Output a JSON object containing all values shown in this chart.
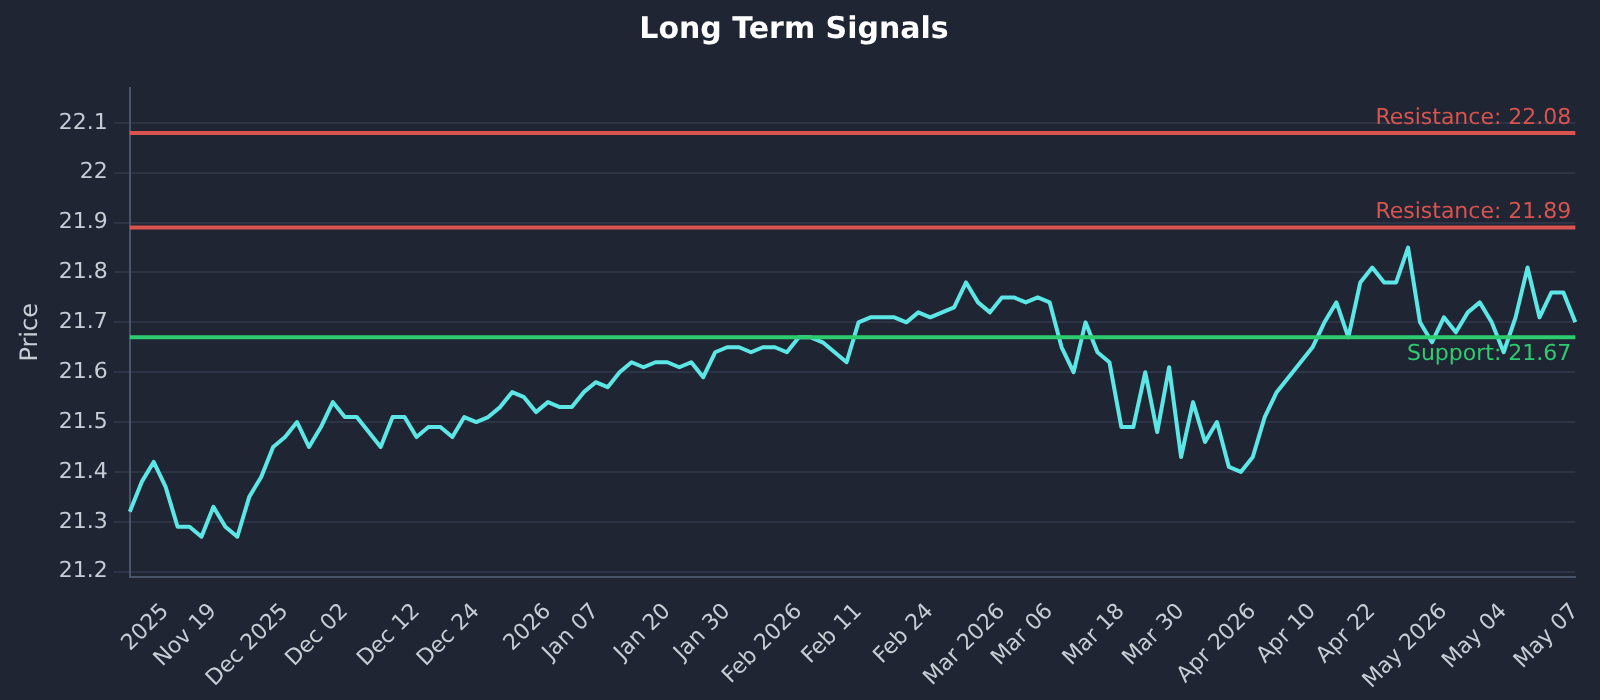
{
  "chart_data": {
    "type": "line",
    "title": "Long Term Signals",
    "ylabel": "Price",
    "categories": [
      null,
      null,
      null,
      "2025",
      null,
      null,
      null,
      "Nov 19",
      null,
      null,
      null,
      null,
      null,
      "Dec 2025",
      null,
      null,
      null,
      null,
      "Dec 02",
      null,
      null,
      null,
      null,
      null,
      "Dec 12",
      null,
      null,
      null,
      null,
      "Dec 24",
      null,
      null,
      null,
      null,
      null,
      "2026",
      null,
      null,
      null,
      "Jan 07",
      null,
      null,
      null,
      null,
      null,
      "Jan 20",
      null,
      null,
      null,
      null,
      "Jan 30",
      null,
      null,
      null,
      null,
      null,
      "Feb 2026",
      null,
      null,
      null,
      null,
      "Feb 11",
      null,
      null,
      null,
      null,
      null,
      "Feb 24",
      null,
      null,
      null,
      null,
      null,
      "Mar 2026",
      null,
      null,
      null,
      "Mar 06",
      null,
      null,
      null,
      null,
      null,
      "Mar 18",
      null,
      null,
      null,
      null,
      "Mar 30",
      null,
      null,
      null,
      null,
      null,
      "Apr 2026",
      null,
      null,
      null,
      null,
      "Apr 10",
      null,
      null,
      null,
      null,
      "Apr 22",
      null,
      null,
      null,
      null,
      null,
      "May 2026",
      null,
      null,
      null,
      null,
      "May 04",
      null,
      null,
      null,
      null,
      null,
      "May 07"
    ],
    "series": [
      {
        "color": "#5ce6e6",
        "values": [
          21.32,
          21.38,
          21.42,
          21.37,
          21.29,
          21.29,
          21.27,
          21.33,
          21.29,
          21.27,
          21.35,
          21.39,
          21.45,
          21.47,
          21.5,
          21.45,
          21.49,
          21.54,
          21.51,
          21.51,
          21.48,
          21.45,
          21.51,
          21.51,
          21.47,
          21.49,
          21.49,
          21.47,
          21.51,
          21.5,
          21.51,
          21.53,
          21.56,
          21.55,
          21.52,
          21.54,
          21.53,
          21.53,
          21.56,
          21.58,
          21.57,
          21.6,
          21.62,
          21.61,
          21.62,
          21.62,
          21.61,
          21.62,
          21.59,
          21.64,
          21.65,
          21.65,
          21.64,
          21.65,
          21.65,
          21.64,
          21.67,
          21.67,
          21.66,
          21.64,
          21.62,
          21.7,
          21.71,
          21.71,
          21.71,
          21.7,
          21.72,
          21.71,
          21.72,
          21.73,
          21.78,
          21.74,
          21.72,
          21.75,
          21.75,
          21.74,
          21.75,
          21.74,
          21.65,
          21.6,
          21.7,
          21.64,
          21.62,
          21.49,
          21.49,
          21.6,
          21.48,
          21.61,
          21.43,
          21.54,
          21.46,
          21.5,
          21.41,
          21.4,
          21.43,
          21.51,
          21.56,
          21.59,
          21.62,
          21.65,
          21.7,
          21.74,
          21.67,
          21.78,
          21.81,
          21.78,
          21.78,
          21.85,
          21.7,
          21.66,
          21.71,
          21.68,
          21.72,
          21.74,
          21.7,
          21.64,
          21.71,
          21.81,
          21.71,
          21.76,
          21.76,
          21.7
        ]
      }
    ],
    "ylim": [
      21.19,
      22.17
    ],
    "yticks": [
      21.2,
      21.3,
      21.4,
      21.5,
      21.6,
      21.7,
      21.8,
      21.9,
      22.0,
      22.1
    ],
    "ref_lines": [
      {
        "axis": "y",
        "value": 22.08,
        "label": "Resistance: 22.08",
        "color": "#d9534f"
      },
      {
        "axis": "y",
        "value": 21.89,
        "label": "Resistance: 21.89",
        "color": "#d9534f"
      },
      {
        "axis": "y",
        "value": 21.67,
        "label": "Support: 21.67",
        "color": "#2ecc71"
      }
    ],
    "grid": "y",
    "legend": false,
    "marker": "none",
    "line_style": "solid"
  }
}
